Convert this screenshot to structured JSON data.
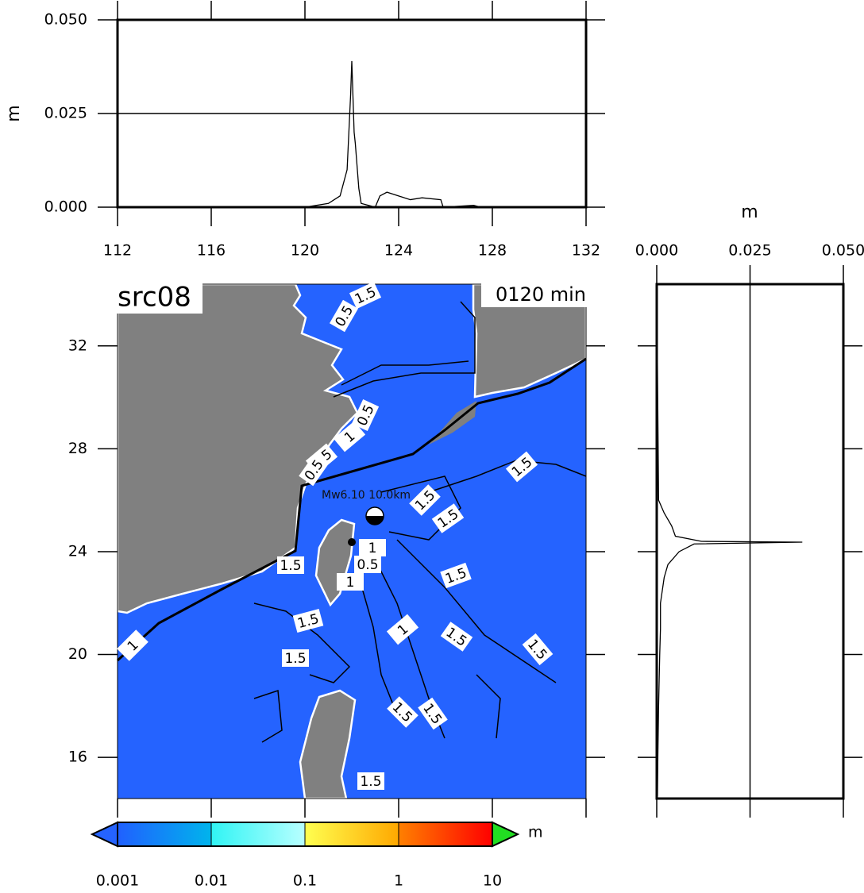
{
  "chart_data": [
    {
      "type": "line",
      "ylabel": "m",
      "color": "#000000",
      "x": [
        112,
        120,
        120.5,
        121,
        121.5,
        121.8,
        121.95,
        122.0,
        122.1,
        122.15,
        122.3,
        122.4,
        123,
        123.2,
        123.5,
        124,
        124.5,
        125,
        125.8,
        125.9,
        127.2,
        127.5,
        132
      ],
      "values": [
        0,
        0,
        0.0005,
        0.001,
        0.003,
        0.01,
        0.03,
        0.039,
        0.02,
        0.017,
        0.005,
        0.001,
        0,
        0.003,
        0.004,
        0.003,
        0.002,
        0.0025,
        0.002,
        0,
        0.0005,
        0,
        0
      ],
      "xlim": [
        112,
        132
      ],
      "xticks": [
        112,
        116,
        120,
        124,
        128,
        132
      ],
      "ylim": [
        0,
        0.05
      ],
      "yticks": [
        {
          "value": 0,
          "label": "0.000"
        },
        {
          "value": 0.025,
          "label": "0.025"
        },
        {
          "value": 0.05,
          "label": "0.050"
        }
      ],
      "grid": true
    },
    {
      "type": "map",
      "title": "src08",
      "time_label": "0120 min",
      "annotation": "Mw6.10 10.0km",
      "xlim": [
        112,
        132
      ],
      "ylim": [
        14.4,
        34.4
      ],
      "yticks": [
        16,
        20,
        24,
        28,
        32
      ],
      "sea_color": "#2563ff",
      "land_color": "#808080",
      "contour_labels": [
        "1.5",
        "0.5",
        "0.5",
        "1",
        "1.5",
        "0.5",
        "1.5",
        "1.5",
        "1.5",
        "1",
        "0.5",
        "1.5",
        "1.5",
        "1",
        "1.5",
        "1",
        "1.5",
        "1",
        "1.5",
        "1.5",
        "1.5",
        "1.5",
        "1.5"
      ],
      "colorbar": {
        "levels": [
          0.001,
          0.01,
          0.1,
          1,
          10
        ],
        "colors": [
          [
            "#2060ff",
            "#00b4ec"
          ],
          [
            "#30f4f4",
            "#b8ffff"
          ],
          [
            "#ffff50",
            "#ffa800"
          ],
          [
            "#ff8000",
            "#ff0000"
          ]
        ],
        "under_color": "#2563ff",
        "over_color": "#22dd22",
        "unit": "m"
      }
    },
    {
      "type": "line",
      "orientation": "horizontal",
      "xlabel": "m",
      "color": "#000000",
      "lat": [
        34.4,
        26.0,
        25.5,
        25.0,
        24.6,
        24.4,
        24.37,
        24.3,
        24.0,
        23.5,
        23.0,
        22,
        21,
        20,
        18,
        16,
        14.5
      ],
      "values": [
        0,
        0.0005,
        0.002,
        0.004,
        0.005,
        0.012,
        0.039,
        0.01,
        0.006,
        0.003,
        0.002,
        0.001,
        0.001,
        0.0008,
        0.0005,
        0.0003,
        0.0002
      ],
      "xlim": [
        0,
        0.05
      ],
      "xticks": [
        {
          "value": 0,
          "label": "0.000"
        },
        {
          "value": 0.025,
          "label": "0.025"
        },
        {
          "value": 0.05,
          "label": "0.050"
        }
      ],
      "ylim": [
        14.4,
        34.4
      ],
      "yticks": [
        16,
        20,
        24,
        28,
        32
      ],
      "grid": true
    }
  ]
}
